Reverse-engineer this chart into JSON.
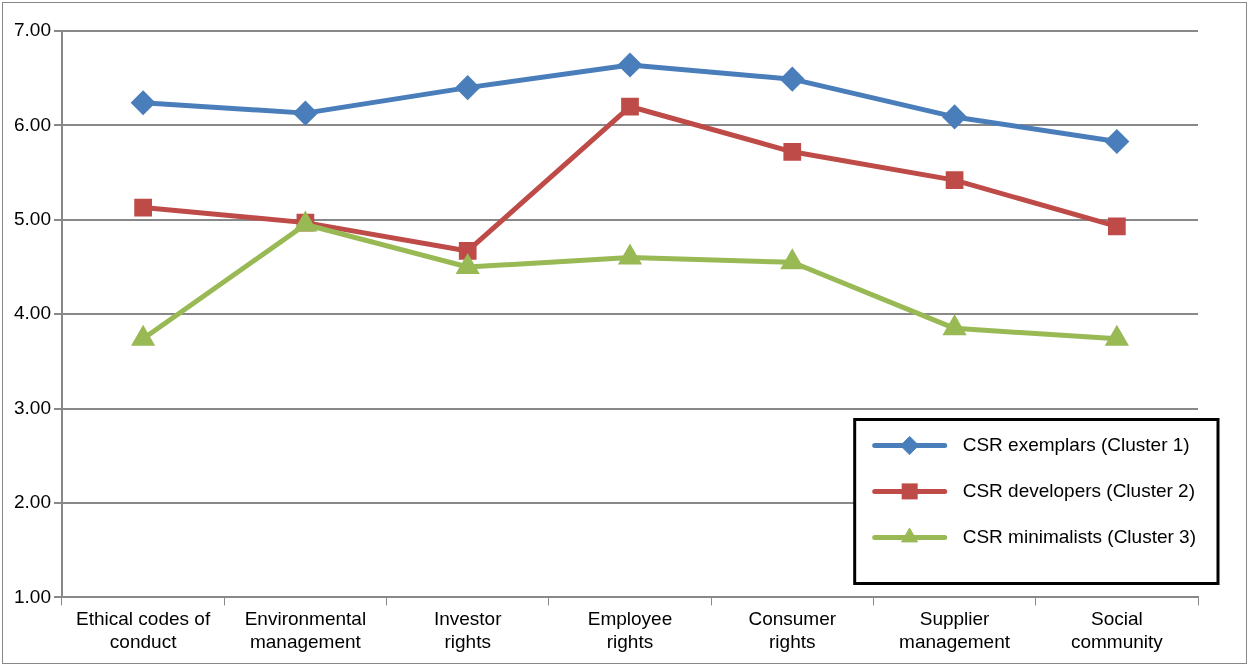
{
  "chart_data": {
    "type": "line",
    "categories": [
      "Ethical codes of conduct",
      "Environmental management",
      "Investor rights",
      "Employee rights",
      "Consumer rights",
      "Supplier management",
      "Social community"
    ],
    "series": [
      {
        "name": "CSR exemplars (Cluster 1)",
        "color": "#4a7ebb",
        "marker": "diamond",
        "values": [
          6.24,
          6.13,
          6.4,
          6.64,
          6.49,
          6.09,
          5.83
        ]
      },
      {
        "name": "CSR developers (Cluster 2)",
        "color": "#be4b48",
        "marker": "square",
        "values": [
          5.13,
          4.97,
          4.67,
          6.2,
          5.72,
          5.42,
          4.93
        ]
      },
      {
        "name": "CSR minimalists (Cluster 3)",
        "color": "#98b954",
        "marker": "triangle",
        "values": [
          3.74,
          4.95,
          4.5,
          4.6,
          4.55,
          3.85,
          3.74
        ]
      }
    ],
    "ylim": [
      1,
      7
    ],
    "yticks": [
      {
        "value": 1,
        "label": "1.00"
      },
      {
        "value": 2,
        "label": "2.00"
      },
      {
        "value": 3,
        "label": "3.00"
      },
      {
        "value": 4,
        "label": "4.00"
      },
      {
        "value": 5,
        "label": "5.00"
      },
      {
        "value": 6,
        "label": "6.00"
      },
      {
        "value": 7,
        "label": "7.00"
      }
    ],
    "grid": "y",
    "legend": "bottom right"
  }
}
